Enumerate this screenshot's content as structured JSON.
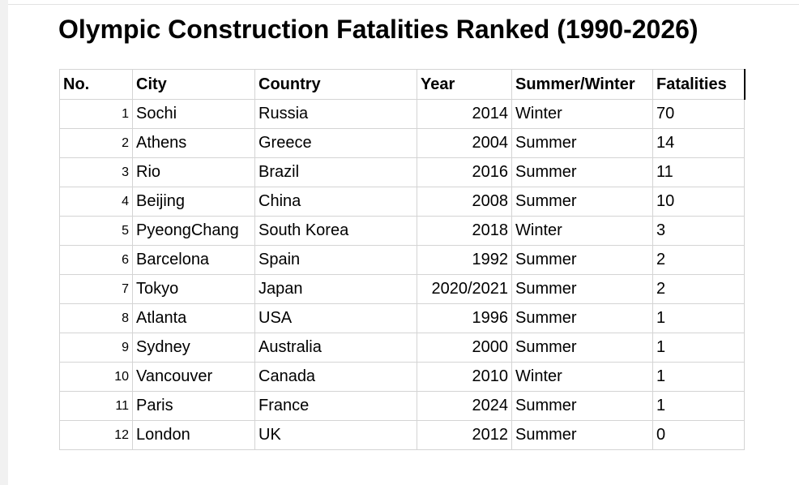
{
  "title": "Olympic Construction Fatalities Ranked (1990-2026)",
  "table": {
    "headers": [
      "No.",
      "City",
      "Country",
      "Year",
      "Summer/Winter",
      "Fatalities"
    ],
    "rows": [
      {
        "no": "1",
        "city": "Sochi",
        "country": "Russia",
        "year": "2014",
        "season": "Winter",
        "fatalities": "70"
      },
      {
        "no": "2",
        "city": "Athens",
        "country": "Greece",
        "year": "2004",
        "season": "Summer",
        "fatalities": "14"
      },
      {
        "no": "3",
        "city": "Rio",
        "country": "Brazil",
        "year": "2016",
        "season": "Summer",
        "fatalities": "11"
      },
      {
        "no": "4",
        "city": "Beijing",
        "country": "China",
        "year": "2008",
        "season": "Summer",
        "fatalities": "10"
      },
      {
        "no": "5",
        "city": "PyeongChang",
        "country": "South Korea",
        "year": "2018",
        "season": "Winter",
        "fatalities": "3"
      },
      {
        "no": "6",
        "city": "Barcelona",
        "country": "Spain",
        "year": "1992",
        "season": "Summer",
        "fatalities": "2"
      },
      {
        "no": "7",
        "city": "Tokyo",
        "country": "Japan",
        "year": "2020/2021",
        "season": "Summer",
        "fatalities": "2"
      },
      {
        "no": "8",
        "city": "Atlanta",
        "country": "USA",
        "year": "1996",
        "season": "Summer",
        "fatalities": "1"
      },
      {
        "no": "9",
        "city": "Sydney",
        "country": "Australia",
        "year": "2000",
        "season": "Summer",
        "fatalities": "1"
      },
      {
        "no": "10",
        "city": "Vancouver",
        "country": "Canada",
        "year": "2010",
        "season": "Winter",
        "fatalities": "1"
      },
      {
        "no": "11",
        "city": "Paris",
        "country": "France",
        "year": "2024",
        "season": "Summer",
        "fatalities": "1"
      },
      {
        "no": "12",
        "city": "London",
        "country": "UK",
        "year": "2012",
        "season": "Summer",
        "fatalities": "0"
      }
    ]
  }
}
